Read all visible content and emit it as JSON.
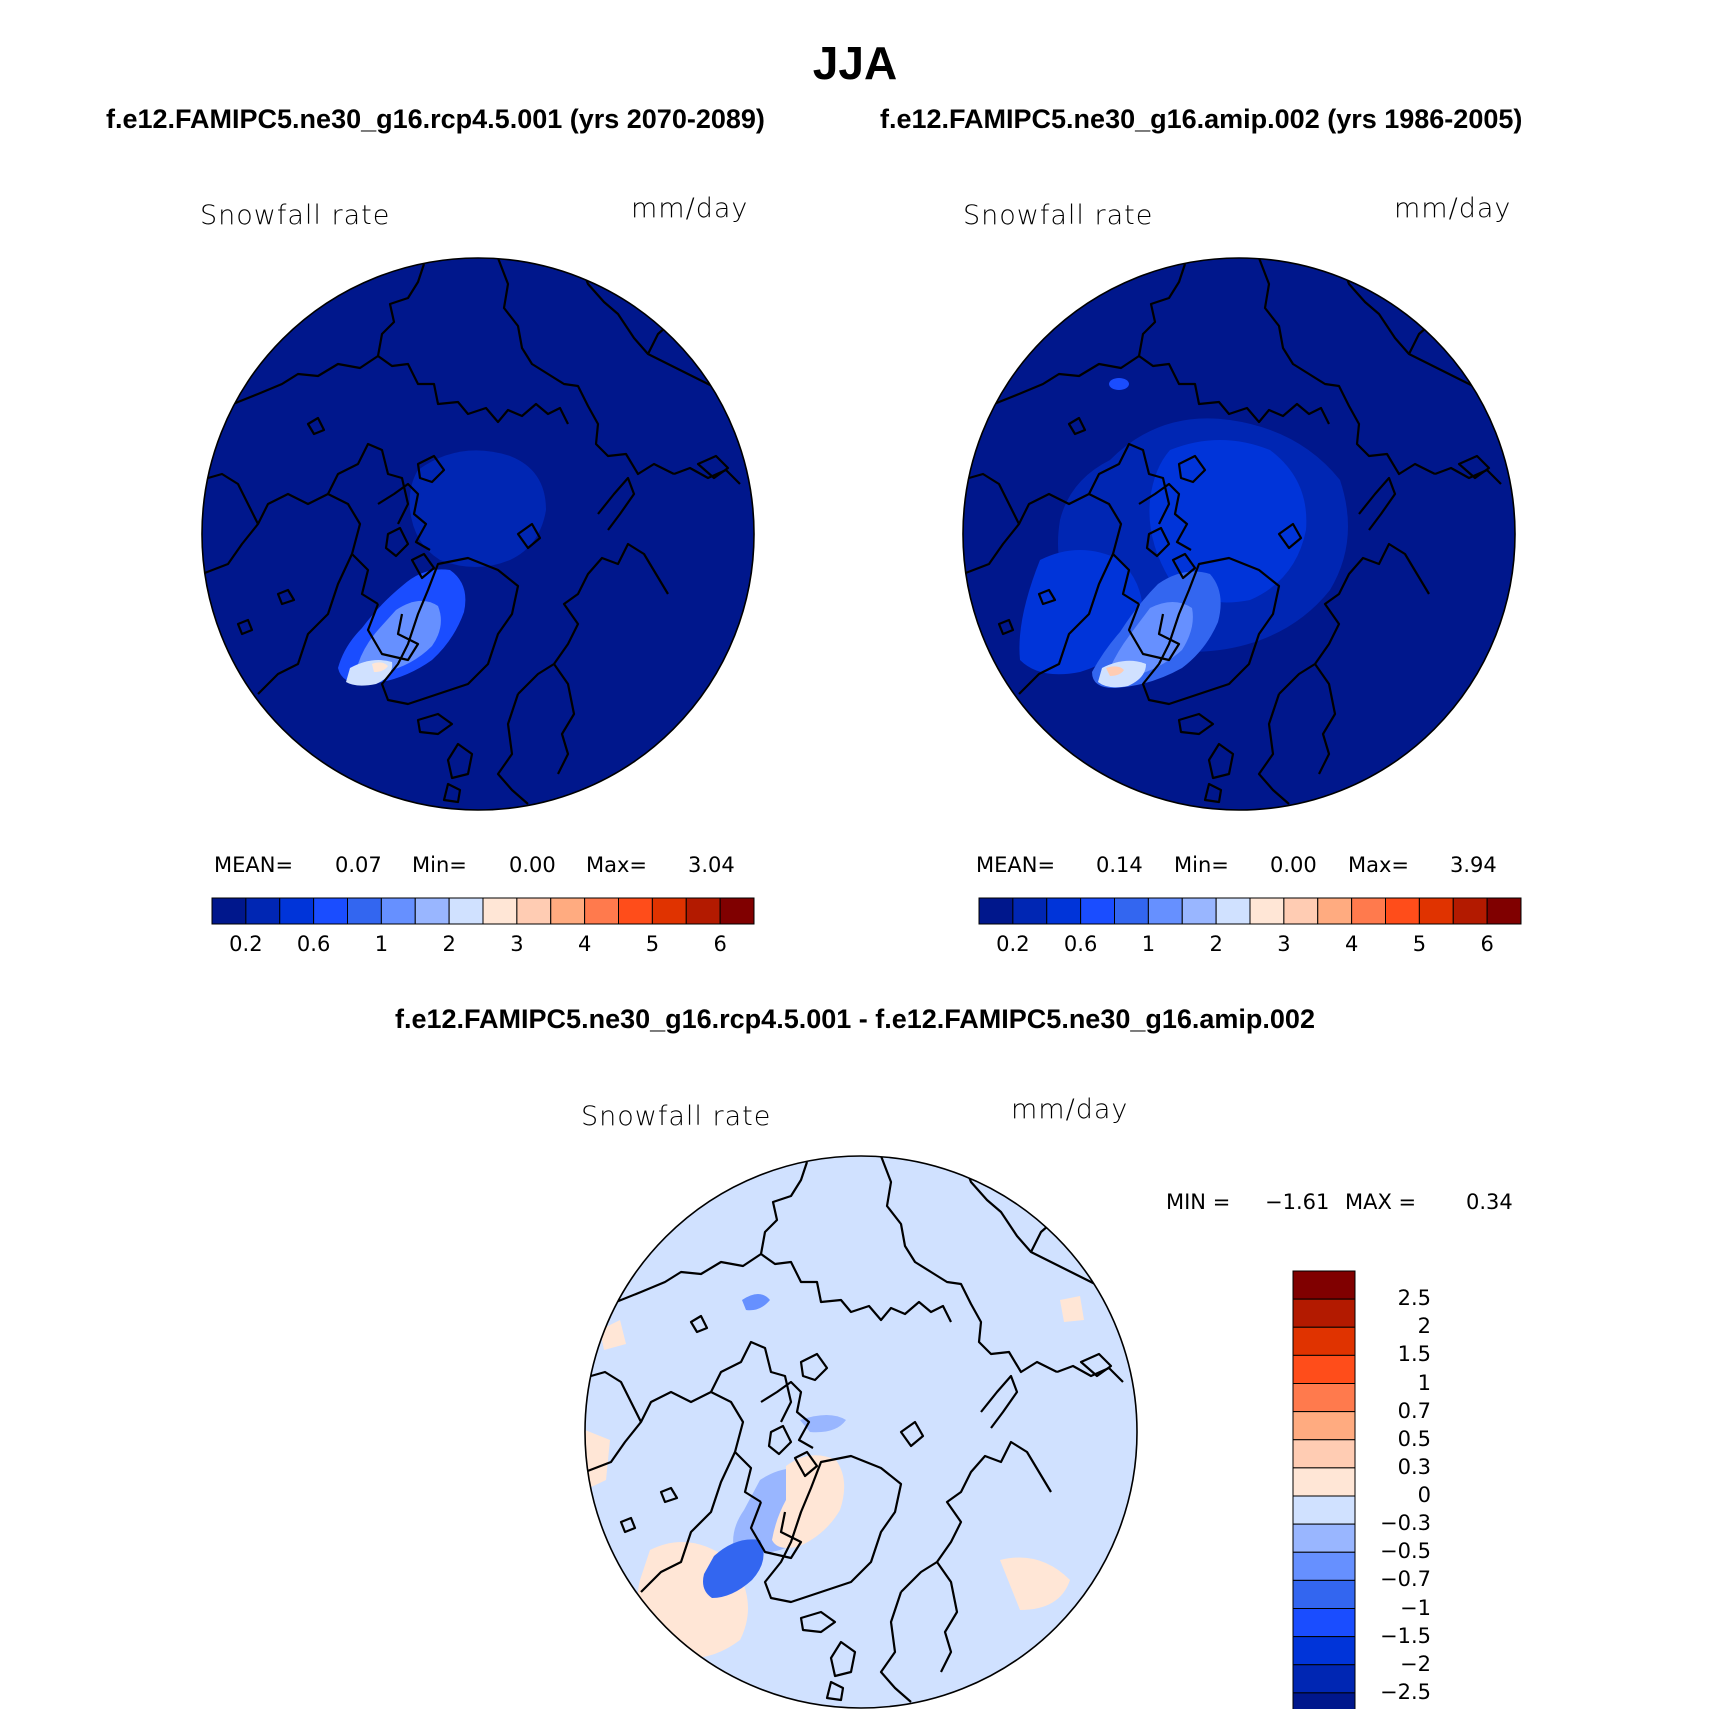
{
  "page_title": "JJA",
  "panels": [
    {
      "case_title": "f.e12.FAMIPC5.ne30_g16.rcp4.5.001 (yrs 2070-2089)",
      "variable_label": "Snowfall rate",
      "units_label": "mm/day",
      "stats": {
        "mean_label": "MEAN=",
        "mean": "0.07",
        "min_label": "Min=",
        "min": "0.00",
        "max_label": "Max=",
        "max": "3.04"
      }
    },
    {
      "case_title": "f.e12.FAMIPC5.ne30_g16.amip.002 (yrs 1986-2005)",
      "variable_label": "Snowfall rate",
      "units_label": "mm/day",
      "stats": {
        "mean_label": "MEAN=",
        "mean": "0.14",
        "min_label": "Min=",
        "min": "0.00",
        "max_label": "Max=",
        "max": "3.94"
      }
    }
  ],
  "diff_panel": {
    "title": "f.e12.FAMIPC5.ne30_g16.rcp4.5.001 - f.e12.FAMIPC5.ne30_g16.amip.002",
    "variable_label": "Snowfall rate",
    "units_label": "mm/day",
    "stats": {
      "min_label": "MIN =",
      "min": "−1.61",
      "max_label": "MAX =",
      "max": "0.34"
    }
  },
  "colorbar_main": {
    "orientation": "horizontal",
    "colors": [
      "#00178c",
      "#0026b3",
      "#0034d9",
      "#1a4dff",
      "#3366f0",
      "#6690ff",
      "#99b6ff",
      "#d0e1ff",
      "#ffe6d6",
      "#ffccb3",
      "#ffab80",
      "#ff7a4d",
      "#ff4d1a",
      "#e03300",
      "#b31a00",
      "#800000"
    ],
    "tick_labels": [
      "0.2",
      "0.6",
      "1",
      "2",
      "3",
      "4",
      "5",
      "6"
    ]
  },
  "colorbar_diff": {
    "orientation": "vertical",
    "colors_top_to_bottom": [
      "#800000",
      "#b31a00",
      "#e03300",
      "#ff4d1a",
      "#ff7a4d",
      "#ffab80",
      "#ffccb3",
      "#ffe6d6",
      "#d0e1ff",
      "#99b6ff",
      "#6690ff",
      "#3366f0",
      "#1a4dff",
      "#0034d9",
      "#0026b3",
      "#00178c"
    ],
    "tick_labels_top_to_bottom": [
      "2.5",
      "2",
      "1.5",
      "1",
      "0.7",
      "0.5",
      "0.3",
      "0",
      "−0.3",
      "−0.5",
      "−0.7",
      "−1",
      "−1.5",
      "−2",
      "−2.5"
    ]
  },
  "map": {
    "projection": "north polar stereographic",
    "map_colors": {
      "background_main": "#00178c",
      "arctic_main": "#0026b3",
      "background_diff": "#d0e1ff",
      "positive_diff": "#ffe6d6",
      "coastline": "#000000"
    }
  }
}
